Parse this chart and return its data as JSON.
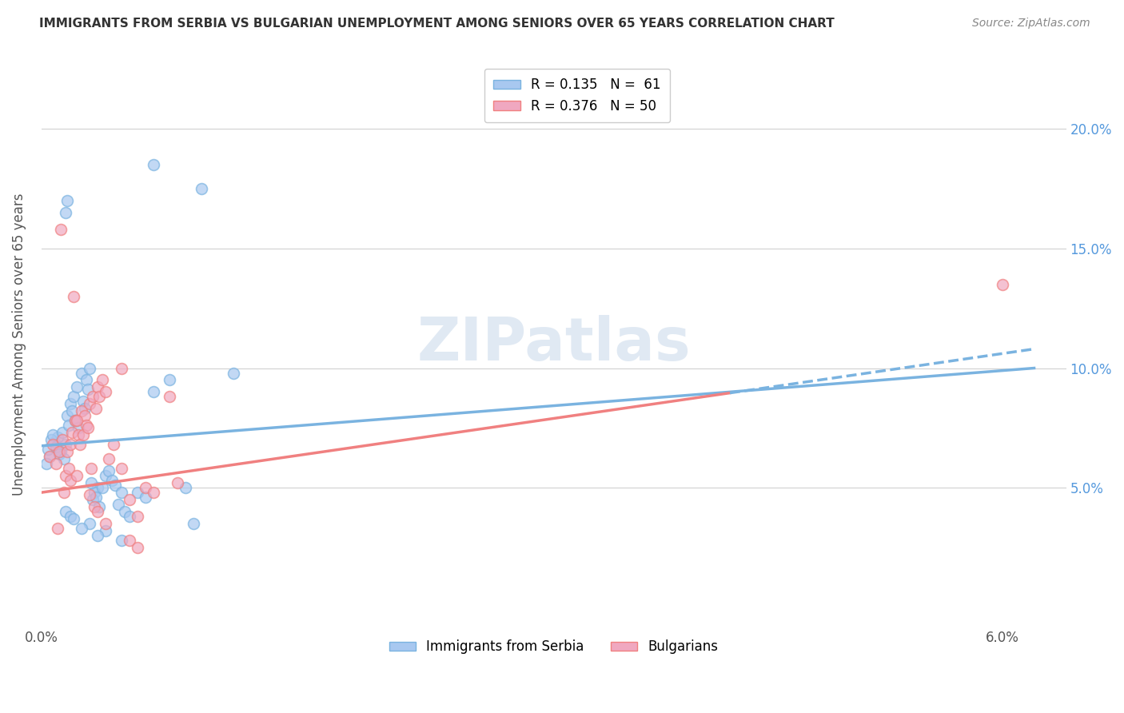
{
  "title": "IMMIGRANTS FROM SERBIA VS BULGARIAN UNEMPLOYMENT AMONG SENIORS OVER 65 YEARS CORRELATION CHART",
  "source": "Source: ZipAtlas.com",
  "ylabel": "Unemployment Among Seniors over 65 years",
  "y_ticks": [
    0.05,
    0.1,
    0.15,
    0.2
  ],
  "y_tick_labels": [
    "5.0%",
    "10.0%",
    "15.0%",
    "20.0%"
  ],
  "x_tick_positions": [
    0.0,
    0.01,
    0.02,
    0.03,
    0.04,
    0.05,
    0.06
  ],
  "x_tick_labels": [
    "0.0%",
    "",
    "",
    "",
    "",
    "",
    "6.0%"
  ],
  "xlim": [
    0.0,
    0.064
  ],
  "ylim": [
    -0.008,
    0.228
  ],
  "legend_label1": "Immigrants from Serbia",
  "legend_label2": "Bulgarians",
  "serbia_color": "#7ab3e0",
  "serbian_fill": "#a8c8f0",
  "bulgarian_color": "#f08080",
  "bulgarian_fill": "#f0a8c0",
  "serbia_trendline_x": [
    0.0,
    0.062
  ],
  "serbia_trendline_y": [
    0.0675,
    0.1
  ],
  "bulgarian_trendline_x": [
    0.0,
    0.062
  ],
  "bulgarian_trendline_y": [
    0.048,
    0.108
  ],
  "bulgarian_trendline_dash_start": 0.043,
  "serbia_scatter": [
    [
      0.0008,
      0.069
    ],
    [
      0.001,
      0.071
    ],
    [
      0.0012,
      0.065
    ],
    [
      0.0015,
      0.068
    ],
    [
      0.0005,
      0.063
    ],
    [
      0.0006,
      0.07
    ],
    [
      0.0007,
      0.072
    ],
    [
      0.0003,
      0.06
    ],
    [
      0.0004,
      0.066
    ],
    [
      0.0009,
      0.067
    ],
    [
      0.0011,
      0.064
    ],
    [
      0.0013,
      0.073
    ],
    [
      0.0014,
      0.062
    ],
    [
      0.0016,
      0.08
    ],
    [
      0.0018,
      0.085
    ],
    [
      0.002,
      0.088
    ],
    [
      0.0022,
      0.092
    ],
    [
      0.0025,
      0.098
    ],
    [
      0.0017,
      0.076
    ],
    [
      0.0019,
      0.082
    ],
    [
      0.0021,
      0.078
    ],
    [
      0.0023,
      0.075
    ],
    [
      0.003,
      0.1
    ],
    [
      0.0028,
      0.095
    ],
    [
      0.0026,
      0.086
    ],
    [
      0.0027,
      0.083
    ],
    [
      0.0029,
      0.091
    ],
    [
      0.0035,
      0.05
    ],
    [
      0.0033,
      0.048
    ],
    [
      0.0031,
      0.052
    ],
    [
      0.0032,
      0.045
    ],
    [
      0.0034,
      0.046
    ],
    [
      0.0036,
      0.042
    ],
    [
      0.0038,
      0.05
    ],
    [
      0.004,
      0.055
    ],
    [
      0.0042,
      0.057
    ],
    [
      0.0044,
      0.053
    ],
    [
      0.0046,
      0.051
    ],
    [
      0.0048,
      0.043
    ],
    [
      0.005,
      0.048
    ],
    [
      0.0052,
      0.04
    ],
    [
      0.006,
      0.048
    ],
    [
      0.0065,
      0.046
    ],
    [
      0.007,
      0.09
    ],
    [
      0.008,
      0.095
    ],
    [
      0.009,
      0.05
    ],
    [
      0.0015,
      0.04
    ],
    [
      0.0018,
      0.038
    ],
    [
      0.002,
      0.037
    ],
    [
      0.0055,
      0.038
    ],
    [
      0.01,
      0.175
    ],
    [
      0.007,
      0.185
    ],
    [
      0.0015,
      0.165
    ],
    [
      0.0016,
      0.17
    ],
    [
      0.012,
      0.098
    ],
    [
      0.0095,
      0.035
    ],
    [
      0.003,
      0.035
    ],
    [
      0.0025,
      0.033
    ],
    [
      0.004,
      0.032
    ],
    [
      0.0035,
      0.03
    ],
    [
      0.005,
      0.028
    ]
  ],
  "bulgarian_scatter": [
    [
      0.0005,
      0.063
    ],
    [
      0.0007,
      0.068
    ],
    [
      0.0009,
      0.06
    ],
    [
      0.0011,
      0.065
    ],
    [
      0.0013,
      0.07
    ],
    [
      0.0015,
      0.055
    ],
    [
      0.0017,
      0.058
    ],
    [
      0.0019,
      0.073
    ],
    [
      0.0021,
      0.078
    ],
    [
      0.0023,
      0.072
    ],
    [
      0.0025,
      0.082
    ],
    [
      0.0027,
      0.08
    ],
    [
      0.0028,
      0.076
    ],
    [
      0.003,
      0.085
    ],
    [
      0.0032,
      0.088
    ],
    [
      0.0034,
      0.083
    ],
    [
      0.0035,
      0.092
    ],
    [
      0.0036,
      0.088
    ],
    [
      0.0038,
      0.095
    ],
    [
      0.004,
      0.09
    ],
    [
      0.0012,
      0.158
    ],
    [
      0.0016,
      0.065
    ],
    [
      0.002,
      0.13
    ],
    [
      0.0018,
      0.068
    ],
    [
      0.0022,
      0.078
    ],
    [
      0.0024,
      0.068
    ],
    [
      0.0026,
      0.072
    ],
    [
      0.0029,
      0.075
    ],
    [
      0.0031,
      0.058
    ],
    [
      0.0033,
      0.042
    ],
    [
      0.0042,
      0.062
    ],
    [
      0.0045,
      0.068
    ],
    [
      0.005,
      0.058
    ],
    [
      0.0055,
      0.045
    ],
    [
      0.006,
      0.038
    ],
    [
      0.0065,
      0.05
    ],
    [
      0.007,
      0.048
    ],
    [
      0.008,
      0.088
    ],
    [
      0.0085,
      0.052
    ],
    [
      0.001,
      0.033
    ],
    [
      0.0014,
      0.048
    ],
    [
      0.0018,
      0.053
    ],
    [
      0.0022,
      0.055
    ],
    [
      0.003,
      0.047
    ],
    [
      0.0035,
      0.04
    ],
    [
      0.004,
      0.035
    ],
    [
      0.0055,
      0.028
    ],
    [
      0.006,
      0.025
    ],
    [
      0.06,
      0.135
    ],
    [
      0.005,
      0.1
    ]
  ]
}
